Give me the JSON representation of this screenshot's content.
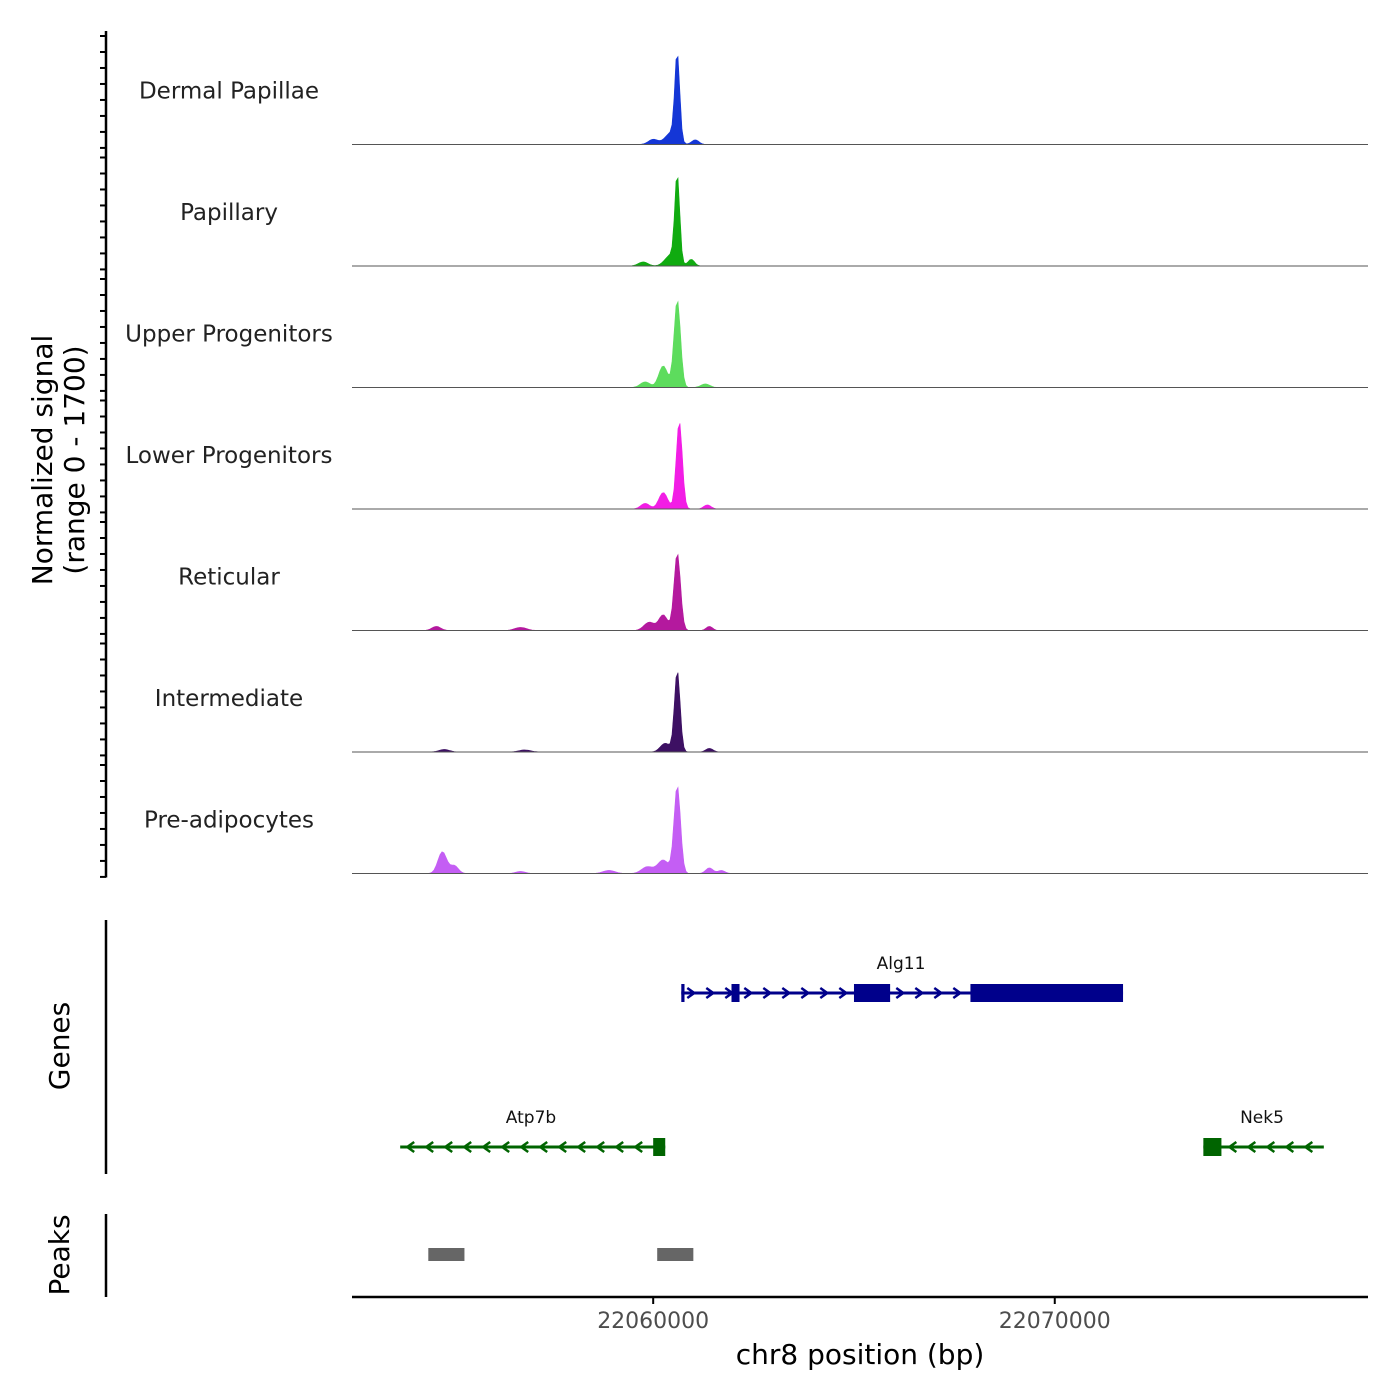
{
  "chart_data": {
    "type": "area",
    "title": "",
    "ylabel": "Normalized signal\n(range 0 - 1700)",
    "y_range": [
      0,
      1700
    ],
    "xlabel": "chr8 position (bp)",
    "x_range": [
      22052500,
      22077800
    ],
    "x_ticks": [
      {
        "value": 22060000,
        "label": "22060000"
      },
      {
        "value": 22070000,
        "label": "22070000"
      }
    ],
    "tracks": [
      {
        "name": "Dermal Papillae",
        "color": "#1436d6",
        "peaks": [
          {
            "pos": 22060000,
            "height": 100,
            "width": 120
          },
          {
            "pos": 22060450,
            "height": 230,
            "width": 150
          },
          {
            "pos": 22060600,
            "height": 1700,
            "width": 60
          },
          {
            "pos": 22061050,
            "height": 90,
            "width": 90
          }
        ]
      },
      {
        "name": "Papillary",
        "color": "#10ab10",
        "peaks": [
          {
            "pos": 22059750,
            "height": 80,
            "width": 120
          },
          {
            "pos": 22060450,
            "height": 220,
            "width": 150
          },
          {
            "pos": 22060600,
            "height": 1700,
            "width": 60
          },
          {
            "pos": 22060950,
            "height": 130,
            "width": 80
          }
        ]
      },
      {
        "name": "Upper Progenitors",
        "color": "#5ddc5d",
        "peaks": [
          {
            "pos": 22059800,
            "height": 110,
            "width": 120
          },
          {
            "pos": 22060250,
            "height": 420,
            "width": 110
          },
          {
            "pos": 22060600,
            "height": 1700,
            "width": 80
          },
          {
            "pos": 22061300,
            "height": 70,
            "width": 110
          }
        ]
      },
      {
        "name": "Lower Progenitors",
        "color": "#f21de5",
        "peaks": [
          {
            "pos": 22059800,
            "height": 110,
            "width": 110
          },
          {
            "pos": 22060250,
            "height": 320,
            "width": 110
          },
          {
            "pos": 22060650,
            "height": 1700,
            "width": 75
          },
          {
            "pos": 22061350,
            "height": 80,
            "width": 90
          }
        ]
      },
      {
        "name": "Reticular",
        "color": "#b4199e",
        "peaks": [
          {
            "pos": 22054600,
            "height": 80,
            "width": 110
          },
          {
            "pos": 22056700,
            "height": 60,
            "width": 150
          },
          {
            "pos": 22059900,
            "height": 160,
            "width": 130
          },
          {
            "pos": 22060250,
            "height": 300,
            "width": 110
          },
          {
            "pos": 22060600,
            "height": 1500,
            "width": 80
          },
          {
            "pos": 22061400,
            "height": 80,
            "width": 80
          }
        ]
      },
      {
        "name": "Intermediate",
        "color": "#3d1063",
        "peaks": [
          {
            "pos": 22054800,
            "height": 50,
            "width": 130
          },
          {
            "pos": 22056800,
            "height": 40,
            "width": 150
          },
          {
            "pos": 22060300,
            "height": 170,
            "width": 120
          },
          {
            "pos": 22060600,
            "height": 1580,
            "width": 70
          },
          {
            "pos": 22061400,
            "height": 70,
            "width": 90
          }
        ]
      },
      {
        "name": "Pre-adipocytes",
        "color": "#c45ef4",
        "peaks": [
          {
            "pos": 22054750,
            "height": 420,
            "width": 110
          },
          {
            "pos": 22055050,
            "height": 150,
            "width": 100
          },
          {
            "pos": 22056700,
            "height": 40,
            "width": 120
          },
          {
            "pos": 22058900,
            "height": 60,
            "width": 150
          },
          {
            "pos": 22059850,
            "height": 130,
            "width": 140
          },
          {
            "pos": 22060250,
            "height": 260,
            "width": 140
          },
          {
            "pos": 22060600,
            "height": 1700,
            "width": 80
          },
          {
            "pos": 22061400,
            "height": 110,
            "width": 90
          },
          {
            "pos": 22061700,
            "height": 60,
            "width": 90
          }
        ]
      }
    ],
    "genes_panel_label": "Genes",
    "genes": [
      {
        "name": "Alg11",
        "strand": "+",
        "color": "#00008b",
        "row": 1,
        "start": 22060700,
        "end": 22071700,
        "exons": [
          [
            22060700,
            22060780
          ],
          [
            22061950,
            22062150
          ],
          [
            22065000,
            22065900
          ],
          [
            22067900,
            22071700
          ]
        ]
      },
      {
        "name": "Atp7b",
        "strand": "-",
        "color": "#006400",
        "row": 2,
        "start": 22053700,
        "end": 22060300,
        "exons": [
          [
            22060000,
            22060300
          ]
        ]
      },
      {
        "name": "Nek5",
        "strand": "-",
        "color": "#006400",
        "row": 2,
        "start": 22073700,
        "end": 22076700,
        "exons": [
          [
            22073700,
            22074150
          ]
        ]
      }
    ],
    "peaks_panel_label": "Peaks",
    "peak_regions": [
      [
        22054400,
        22055300
      ],
      [
        22060100,
        22061000
      ]
    ],
    "peak_region_color": "#666666"
  }
}
